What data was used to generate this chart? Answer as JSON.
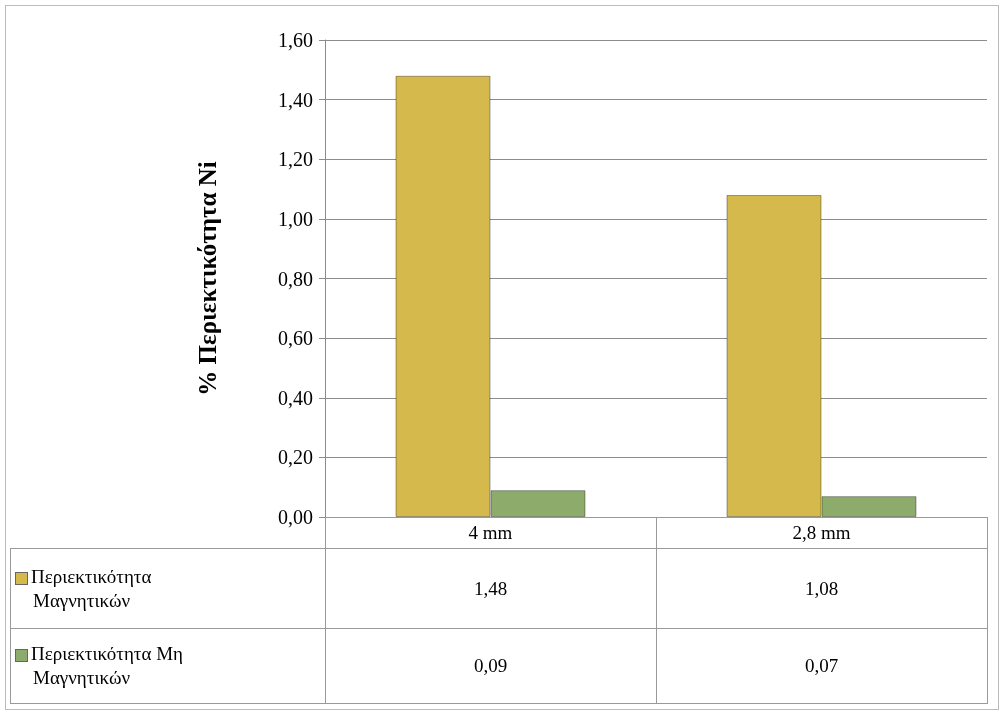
{
  "chart_data": {
    "type": "bar",
    "ylabel": "% Περιεκτικότητα Νi",
    "categories": [
      "4 mm",
      "2,8 mm"
    ],
    "series": [
      {
        "name": "Περιεκτικότητα Μαγνητικών",
        "color": "#d6b94c",
        "values": [
          1.48,
          1.08
        ],
        "value_labels": [
          "1,48",
          "1,08"
        ]
      },
      {
        "name": "Περιεκτικότητα Μη Μαγνητικών",
        "color": "#8dac6b",
        "values": [
          0.09,
          0.07
        ],
        "value_labels": [
          "0,09",
          "0,07"
        ]
      }
    ],
    "ylim": [
      0,
      1.6
    ],
    "yticks": [
      {
        "value": 0,
        "label": "0,00"
      },
      {
        "value": 0.2,
        "label": "0,20"
      },
      {
        "value": 0.4,
        "label": "0,40"
      },
      {
        "value": 0.6,
        "label": "0,60"
      },
      {
        "value": 0.8,
        "label": "0,80"
      },
      {
        "value": 1,
        "label": "1,00"
      },
      {
        "value": 1.2,
        "label": "1,20"
      },
      {
        "value": 1.4,
        "label": "1,40"
      },
      {
        "value": 1.6,
        "label": "1,60"
      }
    ],
    "grid": "y",
    "legend": "bottom left"
  }
}
